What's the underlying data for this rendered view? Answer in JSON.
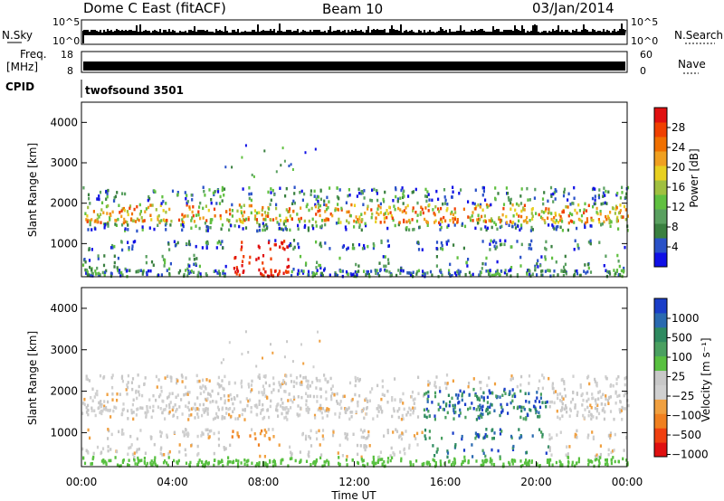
{
  "header": {
    "radar": "Dome C East (fitACF)",
    "beam": "Beam 10",
    "date": "03/Jan/2014"
  },
  "top_panels": {
    "nsky_label": "N.Sky",
    "nsky_ticks": [
      "10^5",
      "10^0"
    ],
    "nsearch_label": "N.Search",
    "freq_label": "Freq.",
    "freq_unit": "[MHz]",
    "freq_ticks": [
      "18",
      "8"
    ],
    "nave_label": "Nave",
    "nave_ticks": [
      "60",
      "0"
    ],
    "cpid_label": "CPID",
    "cpid_value": "twofsound 3501"
  },
  "chart_data": [
    {
      "type": "heatmap",
      "panel": "power",
      "ylabel": "Slant Range [km]",
      "yticks": [
        1000,
        2000,
        3000,
        4000
      ],
      "ylim": [
        180,
        4500
      ],
      "xlim": [
        0,
        24
      ],
      "colorbar": {
        "label": "Power [dB]",
        "ticks": [
          4,
          8,
          12,
          16,
          20,
          24,
          28
        ],
        "range": [
          0,
          32
        ],
        "colors": [
          "#1010e6",
          "#2a52c8",
          "#3a8040",
          "#5aa060",
          "#60c040",
          "#a0c040",
          "#e8d020",
          "#f0a020",
          "#f07000",
          "#f04000",
          "#e01010"
        ]
      }
    },
    {
      "type": "heatmap",
      "panel": "velocity",
      "ylabel": "Slant Range [km]",
      "yticks": [
        1000,
        2000,
        3000,
        4000
      ],
      "ylim": [
        180,
        4500
      ],
      "xlim": [
        0,
        24
      ],
      "xlabel": "Time UT",
      "xticks": [
        "00:00",
        "04:00",
        "08:00",
        "12:00",
        "16:00",
        "20:00",
        "00:00"
      ],
      "colorbar": {
        "label": "Velocity [m s⁻¹]",
        "ticks": [
          "1000",
          "500",
          "100",
          "25",
          "−25",
          "−100",
          "−500",
          "−1000"
        ],
        "colors": [
          "#1a3ec8",
          "#2a6ab0",
          "#2e8a60",
          "#4aa060",
          "#58c040",
          "#c8c8c8",
          "#d0d0d0",
          "#f0a040",
          "#f08020",
          "#f04010",
          "#e01010"
        ]
      }
    }
  ]
}
